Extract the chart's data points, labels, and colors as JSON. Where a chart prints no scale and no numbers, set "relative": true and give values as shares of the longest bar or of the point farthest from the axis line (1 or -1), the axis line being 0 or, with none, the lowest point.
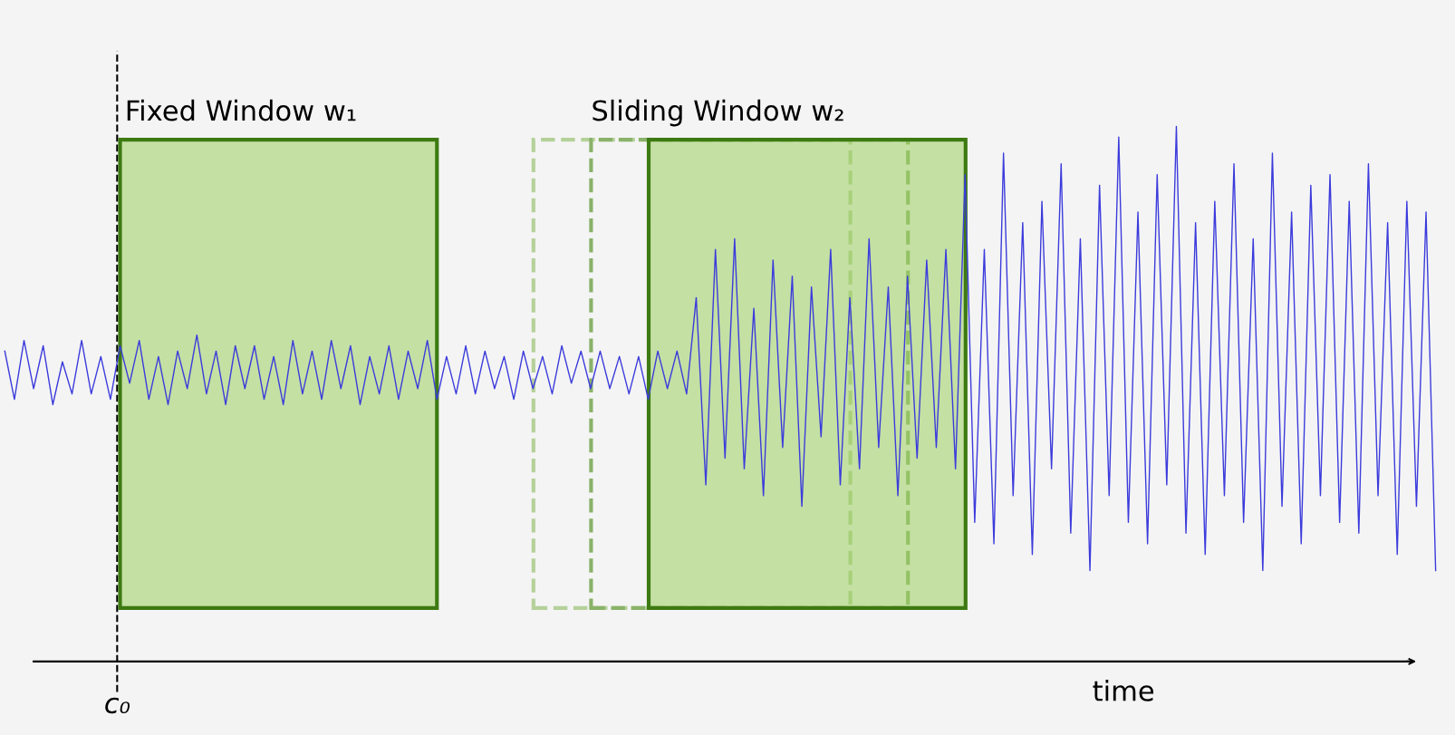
{
  "chart_data": {
    "type": "line",
    "relative": true,
    "grid": false,
    "marker": "none",
    "line_style": "solid",
    "annotations": [
      "Fixed Window w₁",
      "Sliding Window w₂",
      "c₀",
      "time"
    ],
    "categories": [
      null,
      null,
      null,
      null,
      null,
      null,
      null,
      null,
      null,
      null,
      null,
      null,
      null,
      null,
      null,
      null,
      null,
      null,
      null,
      null,
      null,
      null,
      null,
      null,
      null,
      null,
      null,
      null,
      null,
      null,
      null,
      null,
      null,
      null,
      null,
      null,
      null,
      null,
      null,
      null,
      null,
      null,
      null,
      null,
      null,
      null,
      null,
      null,
      null,
      null,
      null,
      null,
      null,
      null,
      null,
      null,
      null,
      null,
      null,
      null,
      null,
      null,
      null,
      null,
      null,
      null,
      null,
      null,
      null,
      null,
      null,
      null,
      null,
      null,
      null,
      null,
      null,
      null,
      null,
      null,
      null,
      null,
      null,
      null,
      null,
      null,
      null,
      null,
      null,
      null,
      null,
      null,
      null,
      null,
      null,
      null,
      null,
      null,
      null,
      null,
      null,
      null,
      null,
      null,
      null,
      null,
      null,
      null,
      null,
      null,
      null,
      null,
      null,
      null,
      null,
      null,
      null,
      null,
      null,
      null,
      null,
      null,
      null,
      null,
      null,
      null,
      null,
      null,
      null,
      null,
      null,
      null,
      null,
      null,
      null,
      null,
      null,
      null,
      null,
      null,
      null,
      null,
      null,
      null,
      null,
      null,
      null,
      null,
      null,
      null
    ],
    "series": [
      {
        "color": "#3b3bdc",
        "values": [
          0.58,
          0.49,
          0.6,
          0.51,
          0.59,
          0.48,
          0.56,
          0.5,
          0.6,
          0.5,
          0.57,
          0.49,
          0.59,
          0.52,
          0.6,
          0.49,
          0.57,
          0.48,
          0.58,
          0.51,
          0.61,
          0.5,
          0.58,
          0.48,
          0.59,
          0.51,
          0.59,
          0.49,
          0.57,
          0.48,
          0.6,
          0.5,
          0.58,
          0.49,
          0.6,
          0.51,
          0.59,
          0.48,
          0.57,
          0.5,
          0.59,
          0.49,
          0.58,
          0.51,
          0.6,
          0.49,
          0.57,
          0.5,
          0.59,
          0.5,
          0.58,
          0.51,
          0.57,
          0.49,
          0.58,
          0.51,
          0.57,
          0.5,
          0.59,
          0.52,
          0.58,
          0.51,
          0.58,
          0.51,
          0.57,
          0.5,
          0.57,
          0.49,
          0.58,
          0.51,
          0.58,
          0.5,
          0.68,
          0.33,
          0.77,
          0.38,
          0.79,
          0.36,
          0.66,
          0.31,
          0.75,
          0.4,
          0.72,
          0.29,
          0.7,
          0.42,
          0.77,
          0.33,
          0.68,
          0.36,
          0.79,
          0.4,
          0.7,
          0.31,
          0.72,
          0.38,
          0.75,
          0.4,
          0.77,
          0.36,
          0.91,
          0.26,
          0.77,
          0.22,
          0.95,
          0.31,
          0.82,
          0.2,
          0.86,
          0.36,
          0.93,
          0.24,
          0.79,
          0.17,
          0.89,
          0.31,
          0.98,
          0.26,
          0.84,
          0.22,
          0.91,
          0.33,
          1,
          0.24,
          0.82,
          0.2,
          0.86,
          0.31,
          0.93,
          0.26,
          0.79,
          0.17,
          0.95,
          0.29,
          0.84,
          0.22,
          0.89,
          0.31,
          0.91,
          0.26,
          0.86,
          0.24,
          0.93,
          0.31,
          0.82,
          0.2,
          0.86,
          0.29,
          0.84,
          0.17
        ]
      }
    ]
  }
}
